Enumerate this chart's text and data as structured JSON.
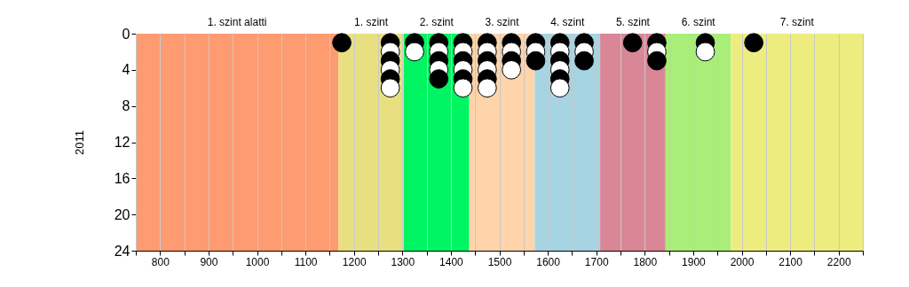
{
  "chart_data": {
    "type": "scatter",
    "ylabel": "2011",
    "xlim": [
      750,
      2250
    ],
    "ylim": [
      24,
      0
    ],
    "xticks": [
      {
        "value": 750,
        "label": null
      },
      800,
      {
        "value": 850,
        "label": null
      },
      900,
      {
        "value": 950,
        "label": null
      },
      1000,
      {
        "value": 1050,
        "label": null
      },
      1100,
      {
        "value": 1150,
        "label": null
      },
      1200,
      {
        "value": 1250,
        "label": null
      },
      1300,
      {
        "value": 1350,
        "label": null
      },
      1400,
      {
        "value": 1450,
        "label": null
      },
      1500,
      {
        "value": 1550,
        "label": null
      },
      1600,
      {
        "value": 1650,
        "label": null
      },
      1700,
      {
        "value": 1750,
        "label": null
      },
      1800,
      {
        "value": 1850,
        "label": null
      },
      1900,
      {
        "value": 1950,
        "label": null
      },
      2000,
      {
        "value": 2050,
        "label": null
      },
      2100,
      {
        "value": 2150,
        "label": null
      },
      2200,
      {
        "value": 2250,
        "label": null
      }
    ],
    "yticks": [
      0,
      4,
      8,
      12,
      16,
      20,
      24
    ],
    "grid": "x",
    "marker": "circle",
    "bands": [
      {
        "axis": "x",
        "from": 750,
        "to": 1168,
        "label": "1. szint alatti",
        "color": "#ff9b70"
      },
      {
        "axis": "x",
        "from": 1168,
        "to": 1303,
        "label": "1. szint",
        "color": "#e8e080"
      },
      {
        "axis": "x",
        "from": 1303,
        "to": 1438,
        "label": "2. szint",
        "color": "#00f562"
      },
      {
        "axis": "x",
        "from": 1438,
        "to": 1573,
        "label": "3. szint",
        "color": "#ffd4aa"
      },
      {
        "axis": "x",
        "from": 1573,
        "to": 1708,
        "label": "4. szint",
        "color": "#a6d4e2"
      },
      {
        "axis": "x",
        "from": 1708,
        "to": 1843,
        "label": "5. szint",
        "color": "#d98797"
      },
      {
        "axis": "x",
        "from": 1843,
        "to": 1978,
        "label": "6. szint",
        "color": "#a9ee78"
      },
      {
        "axis": "x",
        "from": 1978,
        "to": 2250,
        "label": "7. szint",
        "color": "#eded7f"
      }
    ],
    "series": [
      {
        "color": "#000000",
        "x": [
          1175,
          1275,
          1275,
          1275,
          1325,
          1375,
          1375,
          1375,
          1425,
          1425,
          1425,
          1475,
          1475,
          1475,
          1525,
          1525,
          1575,
          1575,
          1625,
          1625,
          1625,
          1675,
          1675,
          1775,
          1825,
          1825,
          1925,
          2025
        ],
        "values": [
          1,
          1,
          3,
          5,
          1,
          1,
          3,
          5,
          1,
          3,
          5,
          1,
          3,
          5,
          1,
          3,
          1,
          3,
          1,
          3,
          5,
          1,
          3,
          1,
          1,
          3,
          1,
          1
        ]
      },
      {
        "color": "#ffffff",
        "x": [
          1275,
          1275,
          1275,
          1325,
          1375,
          1375,
          1425,
          1425,
          1425,
          1475,
          1475,
          1475,
          1525,
          1525,
          1575,
          1625,
          1625,
          1625,
          1675,
          1825,
          1925
        ],
        "values": [
          2,
          4,
          6,
          2,
          2,
          4,
          2,
          4,
          6,
          2,
          4,
          6,
          2,
          4,
          2,
          2,
          4,
          6,
          2,
          2,
          2
        ]
      }
    ]
  }
}
